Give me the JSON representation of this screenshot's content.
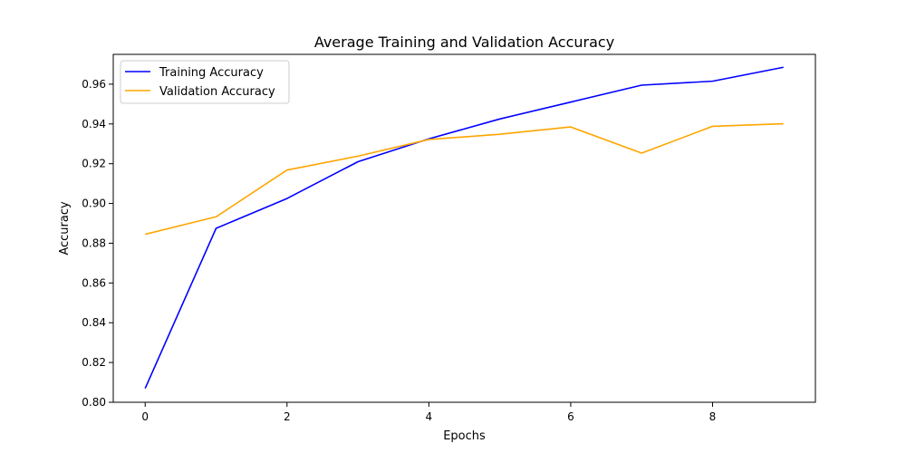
{
  "chart_data": {
    "type": "line",
    "title": "Average Training and Validation Accuracy",
    "xlabel": "Epochs",
    "ylabel": "Accuracy",
    "x": [
      0,
      1,
      2,
      3,
      4,
      5,
      6,
      7,
      8,
      9
    ],
    "xlim": [
      -0.45,
      9.45
    ],
    "ylim": [
      0.8,
      0.975
    ],
    "xticks": [
      0,
      2,
      4,
      6,
      8
    ],
    "xtick_labels": [
      "0",
      "2",
      "4",
      "6",
      "8"
    ],
    "yticks": [
      0.8,
      0.82,
      0.84,
      0.86,
      0.88,
      0.9,
      0.92,
      0.94,
      0.96
    ],
    "ytick_labels": [
      "0.80",
      "0.82",
      "0.84",
      "0.86",
      "0.88",
      "0.90",
      "0.92",
      "0.94",
      "0.96"
    ],
    "grid": false,
    "legend_position": "top-left",
    "series": [
      {
        "name": "Training Accuracy",
        "color": "#0000ff",
        "values": [
          0.807,
          0.8875,
          0.9025,
          0.921,
          0.9325,
          0.9425,
          0.951,
          0.9595,
          0.9615,
          0.9685
        ]
      },
      {
        "name": "Validation Accuracy",
        "color": "#ffa500",
        "values": [
          0.8845,
          0.8933,
          0.9168,
          0.9238,
          0.9322,
          0.9348,
          0.9385,
          0.9253,
          0.9388,
          0.9401
        ]
      }
    ]
  }
}
